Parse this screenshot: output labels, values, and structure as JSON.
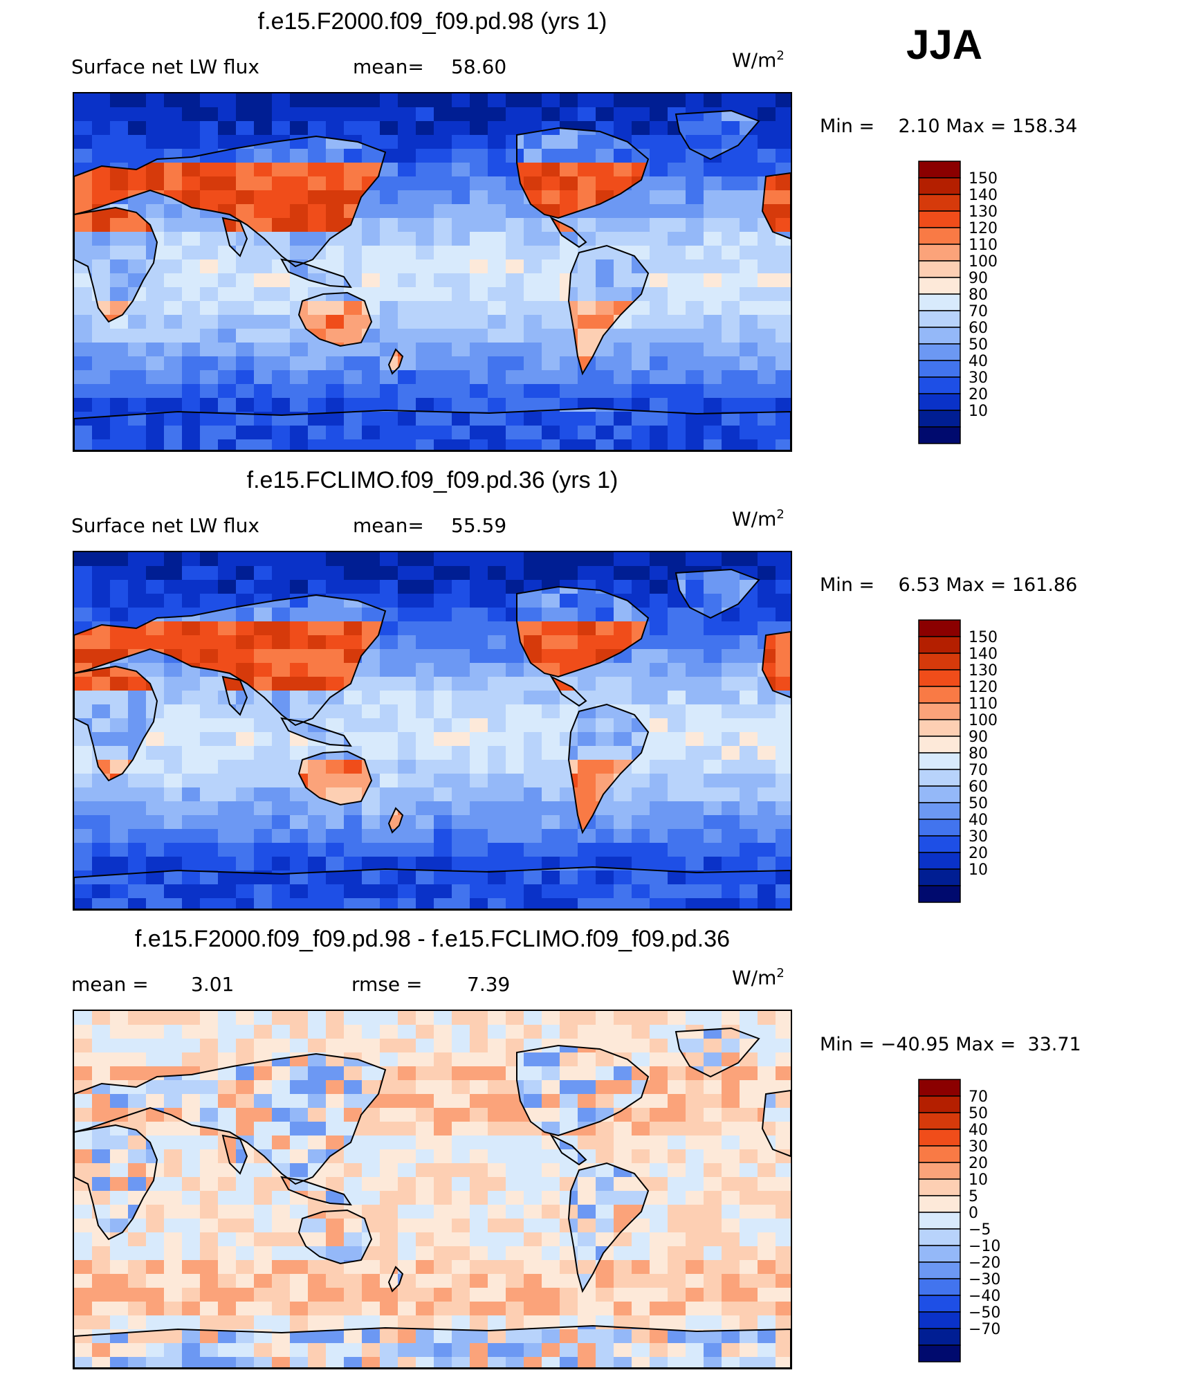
{
  "season": "JJA",
  "panels": [
    {
      "title": "f.e15.F2000.f09_f09.pd.98 (yrs 1)",
      "left_label": "Surface net LW flux",
      "stat_label": "mean=",
      "stat_value": "58.60",
      "units": "W/m",
      "units_exp": "2",
      "min_label": "Min =",
      "min_value": "2.10",
      "max_label": "Max =",
      "max_value": "158.34",
      "levels": [
        "150",
        "140",
        "130",
        "120",
        "110",
        "100",
        "90",
        "80",
        "70",
        "60",
        "50",
        "40",
        "30",
        "20",
        "10"
      ],
      "colors": [
        "#8b0000",
        "#b41f00",
        "#d63a0b",
        "#f04d1a",
        "#f97a45",
        "#fba37a",
        "#fdcfb3",
        "#fde9d9",
        "#d8eafc",
        "#b8d3fb",
        "#94b8f8",
        "#6c98f3",
        "#4274ee",
        "#1e4fe6",
        "#0a32c8",
        "#001e93",
        "#000a6e"
      ],
      "field": "abs"
    },
    {
      "title": "f.e15.FCLIMO.f09_f09.pd.36 (yrs 1)",
      "left_label": "Surface net LW flux",
      "stat_label": "mean=",
      "stat_value": "55.59",
      "units": "W/m",
      "units_exp": "2",
      "min_label": "Min =",
      "min_value": "6.53",
      "max_label": "Max =",
      "max_value": "161.86",
      "levels": [
        "150",
        "140",
        "130",
        "120",
        "110",
        "100",
        "90",
        "80",
        "70",
        "60",
        "50",
        "40",
        "30",
        "20",
        "10"
      ],
      "colors": [
        "#8b0000",
        "#b41f00",
        "#d63a0b",
        "#f04d1a",
        "#f97a45",
        "#fba37a",
        "#fdcfb3",
        "#fde9d9",
        "#d8eafc",
        "#b8d3fb",
        "#94b8f8",
        "#6c98f3",
        "#4274ee",
        "#1e4fe6",
        "#0a32c8",
        "#001e93",
        "#000a6e"
      ],
      "field": "abs"
    },
    {
      "title": "f.e15.F2000.f09_f09.pd.98 - f.e15.FCLIMO.f09_f09.pd.36",
      "left_label": "mean =",
      "left_value": "3.01",
      "stat_label": "rmse =",
      "stat_value": "7.39",
      "units": "W/m",
      "units_exp": "2",
      "min_label": "Min =",
      "min_value": "−40.95",
      "max_label": "Max =",
      "max_value": "33.71",
      "levels": [
        "70",
        "50",
        "40",
        "30",
        "20",
        "10",
        "5",
        "0",
        "−5",
        "−10",
        "−20",
        "−30",
        "−40",
        "−50",
        "−70"
      ],
      "colors": [
        "#8b0000",
        "#b41f00",
        "#d63a0b",
        "#f04d1a",
        "#f97a45",
        "#fba37a",
        "#fdcfb3",
        "#fde9d9",
        "#d8eafc",
        "#b8d3fb",
        "#94b8f8",
        "#6c98f3",
        "#4274ee",
        "#1e4fe6",
        "#0a32c8",
        "#001e93",
        "#000a6e"
      ],
      "field": "diff"
    }
  ],
  "chart_data": [
    {
      "type": "heatmap",
      "title": "f.e15.F2000.f09_f09.pd.98 (yrs 1)",
      "variable": "Surface net LW flux",
      "units": "W/m2",
      "mean": 58.6,
      "min": 2.1,
      "max": 158.34,
      "contour_levels": [
        10,
        20,
        30,
        40,
        50,
        60,
        70,
        80,
        90,
        100,
        110,
        120,
        130,
        140,
        150
      ]
    },
    {
      "type": "heatmap",
      "title": "f.e15.FCLIMO.f09_f09.pd.36 (yrs 1)",
      "variable": "Surface net LW flux",
      "units": "W/m2",
      "mean": 55.59,
      "min": 6.53,
      "max": 161.86,
      "contour_levels": [
        10,
        20,
        30,
        40,
        50,
        60,
        70,
        80,
        90,
        100,
        110,
        120,
        130,
        140,
        150
      ]
    },
    {
      "type": "heatmap",
      "title": "f.e15.F2000.f09_f09.pd.98 - f.e15.FCLIMO.f09_f09.pd.36",
      "units": "W/m2",
      "mean": 3.01,
      "rmse": 7.39,
      "min": -40.95,
      "max": 33.71,
      "contour_levels": [
        -70,
        -50,
        -40,
        -30,
        -20,
        -10,
        -5,
        0,
        5,
        10,
        20,
        30,
        40,
        50,
        70
      ]
    }
  ]
}
